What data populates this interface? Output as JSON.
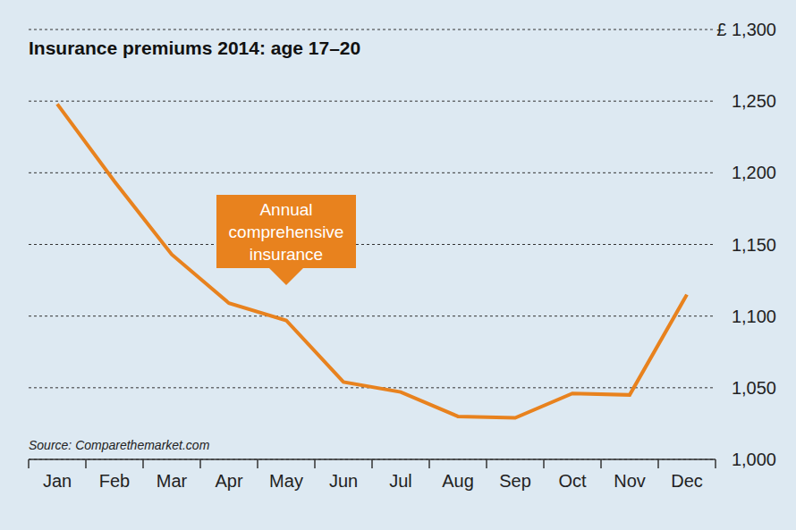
{
  "chart_data": {
    "type": "line",
    "title": "Insurance premiums 2014: age 17–20",
    "source": "Source: Comparethemarket.com",
    "annotations": [
      "Annual comprehensive insurance"
    ],
    "categories": [
      "Jan",
      "Feb",
      "Mar",
      "Apr",
      "May",
      "Jun",
      "Jul",
      "Aug",
      "Sep",
      "Oct",
      "Nov",
      "Dec"
    ],
    "values": [
      1248,
      1194,
      1143,
      1109,
      1097,
      1054,
      1047,
      1030,
      1029,
      1046,
      1045,
      1115
    ],
    "color": "#e8821e",
    "ylim": [
      1000,
      1300
    ],
    "yticks": [
      {
        "value": 1000,
        "label": "1,000"
      },
      {
        "value": 1050,
        "label": "1,050"
      },
      {
        "value": 1100,
        "label": "1,100"
      },
      {
        "value": 1150,
        "label": "1,150"
      },
      {
        "value": 1200,
        "label": "1,200"
      },
      {
        "value": 1250,
        "label": "1,250"
      },
      {
        "value": 1300,
        "label": "£ 1,300"
      }
    ],
    "grid": true
  }
}
